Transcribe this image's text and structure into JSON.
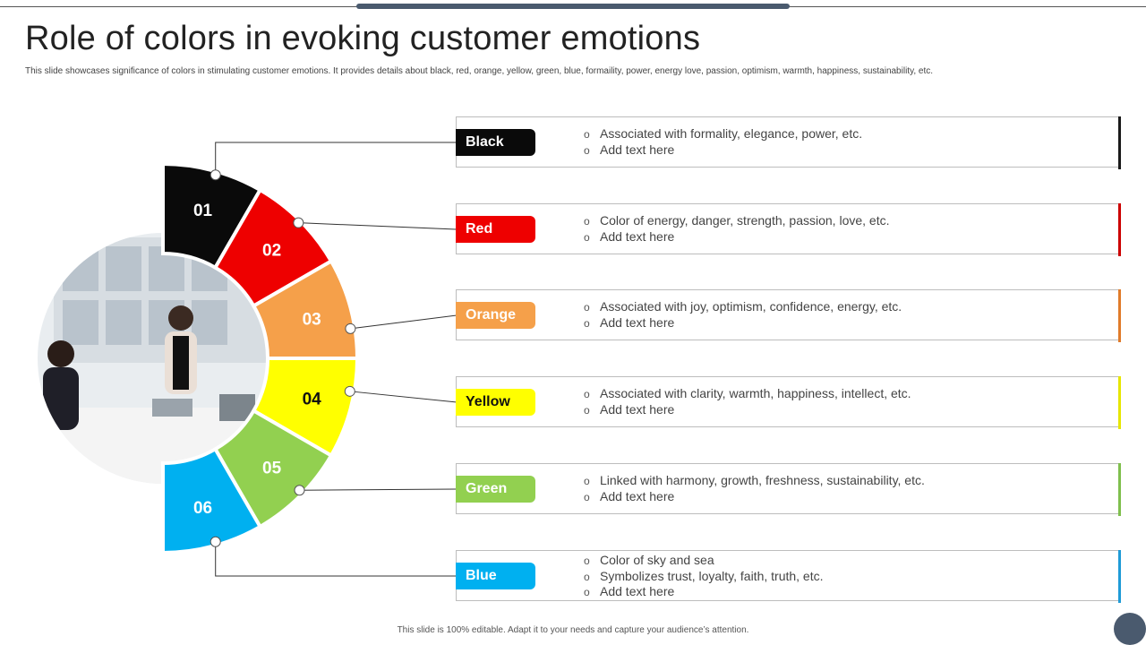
{
  "title": "Role of colors in evoking customer emotions",
  "subtitle": "This slide showcases significance of colors in stimulating customer emotions.  It provides details about black, red, orange, yellow, green, blue, formaility, power, energy love, passion, optimism,  warmth, happiness, sustainability, etc.",
  "footer": "This slide is 100% editable.  Adapt it to your needs and capture your audience’s attention.",
  "items": [
    {
      "number": "01",
      "label": "Black",
      "color": "#0a0a0a",
      "text_color": "#ffffff",
      "bullets": [
        "Associated with formality, elegance, power, etc.",
        "Add text here"
      ]
    },
    {
      "number": "02",
      "label": "Red",
      "color": "#ee0000",
      "text_color": "#ffffff",
      "bullets": [
        "Color of energy, danger, strength, passion, love, etc.",
        "Add text here"
      ]
    },
    {
      "number": "03",
      "label": "Orange",
      "color": "#f5a04a",
      "text_color": "#ffffff",
      "bullets": [
        "Associated with joy, optimism, confidence, energy, etc.",
        "Add text here"
      ]
    },
    {
      "number": "04",
      "label": "Yellow",
      "color": "#ffff00",
      "text_color": "#111111",
      "bullets": [
        "Associated with clarity, warmth, happiness, intellect, etc.",
        "Add text here"
      ]
    },
    {
      "number": "05",
      "label": "Green",
      "color": "#92d050",
      "text_color": "#ffffff",
      "bullets": [
        "Linked with harmony, growth, freshness, sustainability, etc.",
        "Add text here"
      ]
    },
    {
      "number": "06",
      "label": "Blue",
      "color": "#00b0f0",
      "text_color": "#ffffff",
      "bullets": [
        "Color of sky and sea",
        "Symbolizes trust, loyalty, faith, truth, etc.",
        "Add text here"
      ]
    }
  ],
  "accent_colors": [
    "#1a1a1a",
    "#cc0000",
    "#e07b2a",
    "#e6e600",
    "#7fbf4d",
    "#1f9bd7"
  ]
}
